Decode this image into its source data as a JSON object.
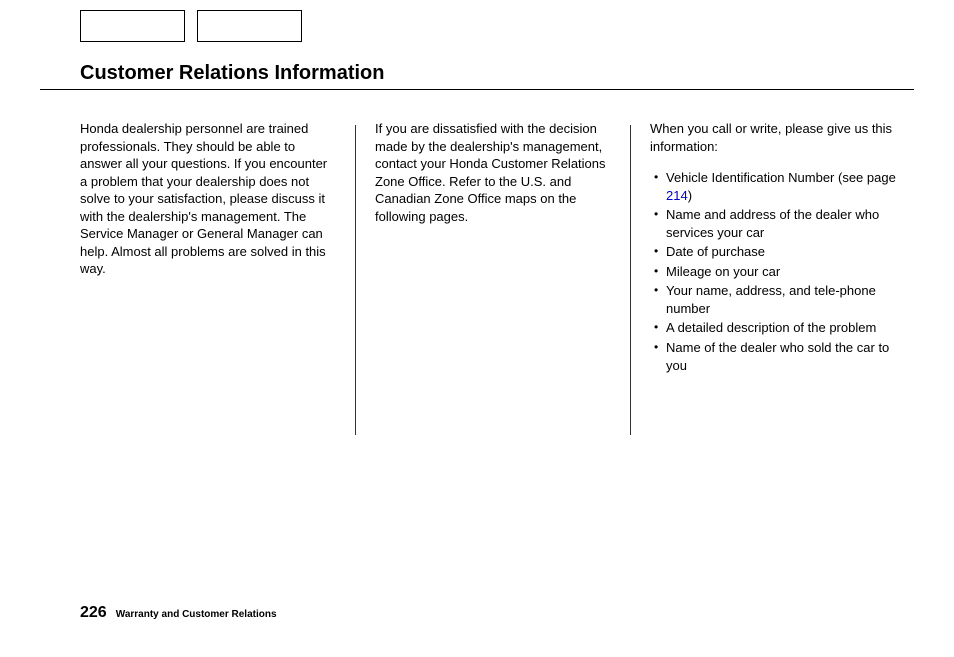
{
  "title": "Customer Relations Information",
  "col1": {
    "para": "Honda dealership personnel are trained professionals. They should be able to answer all your questions. If you encounter a problem that your dealership does not solve to your satisfaction, please discuss it with the dealership's management. The Service Manager or General Manager can help. Almost all problems are solved in this way."
  },
  "col2": {
    "para": "If you are dissatisfied with the decision made by the dealership's management, contact your Honda Customer Relations Zone Office. Refer to the U.S. and Canadian Zone Office maps on the following pages."
  },
  "col3": {
    "intro": "When you call or write, please give us this information:",
    "bullets": {
      "b0a": "Vehicle Identification Number (see page ",
      "b0link": "214",
      "b0b": ")",
      "b1": "Name and address of the dealer who services your car",
      "b2": "Date of purchase",
      "b3": "Mileage on your car",
      "b4": "Your name, address, and tele-phone number",
      "b5": "A detailed description of the problem",
      "b6": "Name of the dealer who sold the car to you"
    }
  },
  "footer": {
    "page_num": "226",
    "section": "Warranty and Customer Relations"
  }
}
